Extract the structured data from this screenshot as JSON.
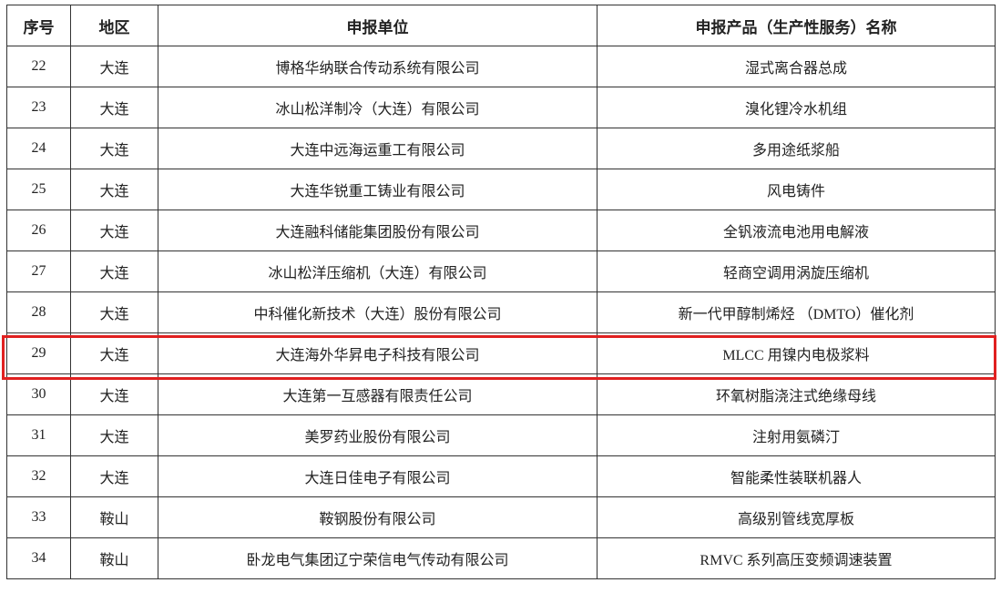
{
  "table": {
    "headers": [
      "序号",
      "地区",
      "申报单位",
      "申报产品（生产性服务）名称"
    ],
    "rows": [
      [
        "22",
        "大连",
        "博格华纳联合传动系统有限公司",
        "湿式离合器总成"
      ],
      [
        "23",
        "大连",
        "冰山松洋制冷（大连）有限公司",
        "溴化锂冷水机组"
      ],
      [
        "24",
        "大连",
        "大连中远海运重工有限公司",
        "多用途纸浆船"
      ],
      [
        "25",
        "大连",
        "大连华锐重工铸业有限公司",
        "风电铸件"
      ],
      [
        "26",
        "大连",
        "大连融科储能集团股份有限公司",
        "全钒液流电池用电解液"
      ],
      [
        "27",
        "大连",
        "冰山松洋压缩机（大连）有限公司",
        "轻商空调用涡旋压缩机"
      ],
      [
        "28",
        "大连",
        "中科催化新技术（大连）股份有限公司",
        "新一代甲醇制烯烃 （DMTO）催化剂"
      ],
      [
        "29",
        "大连",
        "大连海外华昇电子科技有限公司",
        "MLCC 用镍内电极浆料"
      ],
      [
        "30",
        "大连",
        "大连第一互感器有限责任公司",
        "环氧树脂浇注式绝缘母线"
      ],
      [
        "31",
        "大连",
        "美罗药业股份有限公司",
        "注射用氨磷汀"
      ],
      [
        "32",
        "大连",
        "大连日佳电子有限公司",
        "智能柔性装联机器人"
      ],
      [
        "33",
        "鞍山",
        "鞍钢股份有限公司",
        "高级别管线宽厚板"
      ],
      [
        "34",
        "鞍山",
        "卧龙电气集团辽宁荣信电气传动有限公司",
        "RMVC 系列高压变频调速装置"
      ]
    ],
    "highlighted_row": "29",
    "highlight_color": "#e02020"
  }
}
